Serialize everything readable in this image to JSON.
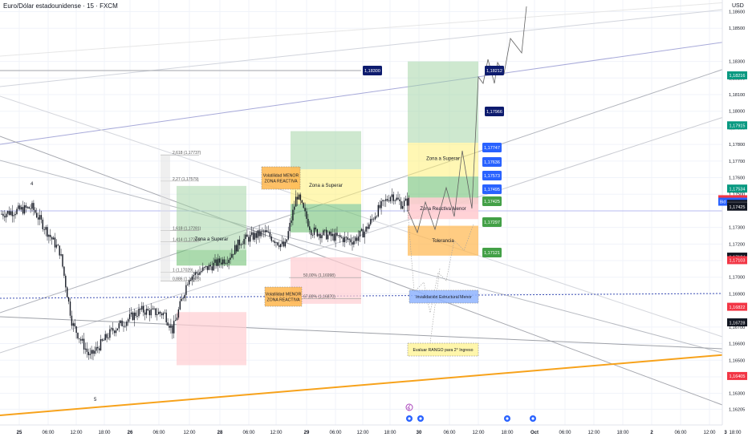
{
  "header": {
    "symbol_title": "Euro/Dólar estadounidense · 15 · FXCM",
    "currency": "USD"
  },
  "colors": {
    "up_candle": "#089981",
    "down_candle": "#f23645",
    "orange_trend": "#f7a21b",
    "zone_green": "#a5d6a7",
    "zone_green_strong": "#66bb6a",
    "zone_red": "#ffcdd2",
    "zone_yellow": "#fff176",
    "zone_orange": "#ffb74d",
    "blue_label": "#2962ff",
    "navy_label": "#0d1b6e",
    "green_label": "#43a047"
  },
  "chart_data": {
    "type": "candlestick",
    "symbol": "EURUSD",
    "timeframe": "15",
    "ylim": [
      1.1611,
      1.1867
    ],
    "x_ticks": [
      "25",
      "06:00",
      "12:00",
      "18:00",
      "26",
      "06:00",
      "12:00",
      "28",
      "06:00",
      "12:00",
      "29",
      "06:00",
      "12:00",
      "18:00",
      "30",
      "06:00",
      "12:00",
      "18:00",
      "Oct",
      "06:00",
      "12:00",
      "18:00",
      "2",
      "06:00",
      "12:00",
      "18:00",
      "3"
    ],
    "y_ticks": [
      "1,18600",
      "1,18500",
      "1,18300",
      "1,18200",
      "1,18100",
      "1,18000",
      "1,17900",
      "1,17800",
      "1,17700",
      "1,17600",
      "1,17500",
      "1,17300",
      "1,17200",
      "1,17100",
      "1,17000",
      "1,16900",
      "1,16700",
      "1,16600",
      "1,16500",
      "1,16400",
      "1,16300",
      "1,16205"
    ],
    "price_axis_labels": [
      {
        "text": "1,18216",
        "color": "#089981"
      },
      {
        "text": "1,17915",
        "color": "#089981"
      },
      {
        "text": "1,17534",
        "color": "#089981"
      },
      {
        "text": "1,17457",
        "color": "#f23645",
        "tag": "Ask"
      },
      {
        "text": "1,17455",
        "color": "#2962ff",
        "tag": "Bid"
      },
      {
        "text": "1,17455",
        "color": "#131722"
      },
      {
        "text": "11:33",
        "color": "#131722"
      },
      {
        "text": "1,17425",
        "color": "#131722"
      },
      {
        "text": "1,17124",
        "color": "#131722"
      },
      {
        "text": "1,17103",
        "color": "#f23645"
      },
      {
        "text": "1,16822",
        "color": "#f23645"
      },
      {
        "text": "1,16728",
        "color": "#131722"
      },
      {
        "text": "1,16405",
        "color": "#f23645"
      }
    ],
    "candles_summary": {
      "start": 1.1738,
      "wave_low": 1.165,
      "low_marker": "5",
      "high_marker": "4",
      "recovery_high": 1.1747,
      "last_price": 1.17455
    },
    "fib_labels": [
      "2,618 (1,17737)",
      "2,27 (1,17579)",
      "1,618 (1,17281)",
      "1,414 (1,17214)",
      "1 (1,17029)",
      "0,886 (1,16978)"
    ],
    "fib_levels": [
      1.17737,
      1.17579,
      1.17281,
      1.17214,
      1.17029,
      1.16978
    ],
    "fib2_labels": [
      "50,00% (1,16998)",
      "67,80% (1,16870)"
    ],
    "fib2_levels": [
      1.16998,
      1.1687
    ],
    "zones": [
      {
        "label": "Zona a Superar",
        "type": "green-yellow",
        "top": 1.1755,
        "mid": 1.1728,
        "bottom": 1.1707
      },
      {
        "label": "Zona a Superar",
        "type": "green-yellow",
        "top": 1.1788,
        "mid": 1.1765,
        "bottom": 1.1727
      },
      {
        "label": "Zona a Superar",
        "type": "green-yellow",
        "top": 1.183,
        "mid": 1.1781,
        "bottom": 1.1744
      },
      {
        "label": "Zona Reactiva Menor",
        "type": "red",
        "top": 1.1748,
        "bottom": 1.1735
      },
      {
        "label": "Tolerancia",
        "type": "orange",
        "top": 1.1731,
        "bottom": 1.1713
      }
    ],
    "red_zones": [
      {
        "x_from": "27 06:00",
        "top": 1.1679,
        "bottom": 1.1647
      },
      {
        "x_from": "29 06:00",
        "top": 1.1712,
        "bottom": 1.1684
      }
    ],
    "notes": [
      {
        "text": "Volatilidad MENOR\nZONA REACTIVA",
        "color": "#ffb74d",
        "price": 1.177
      },
      {
        "text": "Volatilidad MENOR\nZONA REACTIVA",
        "color": "#ffb74d",
        "price": 1.1693
      },
      {
        "text": "Invalidación Estructural Menor",
        "color": "#90b4ff",
        "price": 1.16985
      },
      {
        "text": "Evaluar RANGO para 2° Ingreso",
        "color": "#fff59d",
        "price": 1.1657
      }
    ],
    "price_tags": [
      {
        "text": "1,18300",
        "color": "#0d1b6e"
      },
      {
        "text": "1,18212",
        "color": "#0d1b6e"
      },
      {
        "text": "1,17966",
        "color": "#0d1b6e"
      },
      {
        "text": "1,17747",
        "color": "#2962ff"
      },
      {
        "text": "1,17636",
        "color": "#2962ff"
      },
      {
        "text": "1,17573",
        "color": "#2962ff"
      },
      {
        "text": "1,17495",
        "color": "#2962ff"
      },
      {
        "text": "1,17425",
        "color": "#43a047"
      },
      {
        "text": "1,17297",
        "color": "#43a047"
      },
      {
        "text": "1,17121",
        "color": "#43a047"
      }
    ],
    "grid": true,
    "legend": "none"
  }
}
